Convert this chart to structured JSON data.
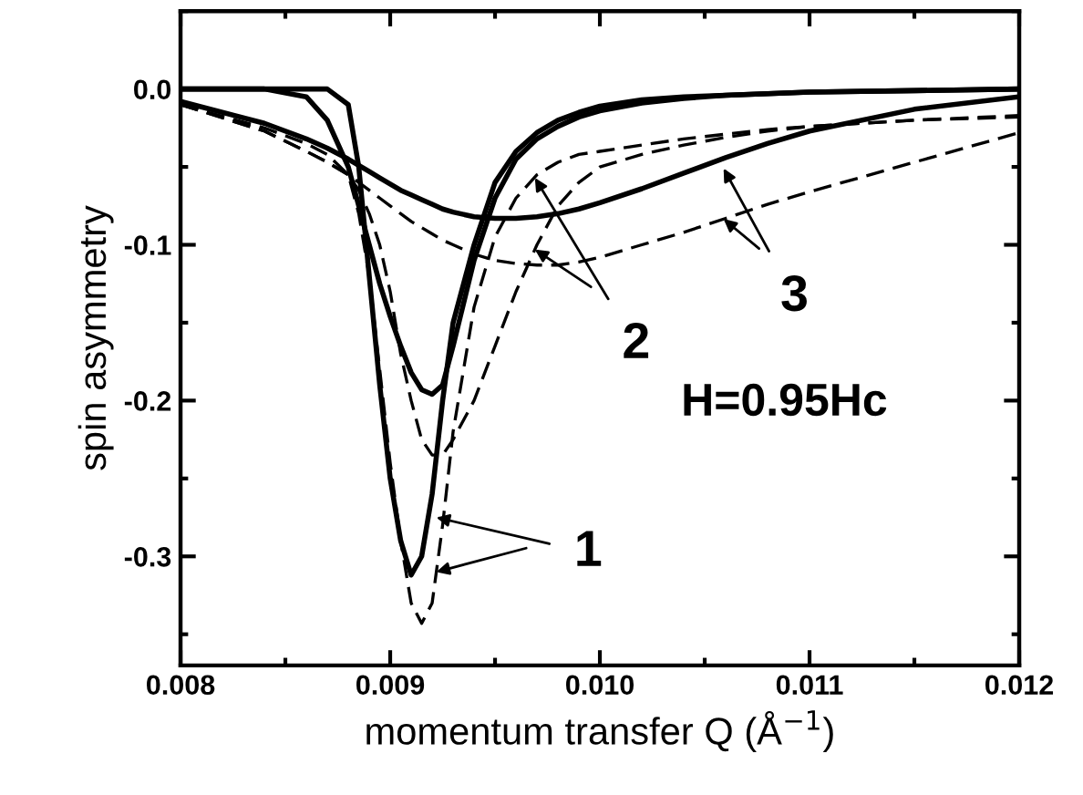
{
  "chart_data": {
    "type": "line",
    "xlabel": "momentum transfer Q (Å$^{−1}$)",
    "ylabel": "spin asymmetry",
    "x": [
      0.008,
      0.0084,
      0.0086,
      0.0087,
      0.0088,
      0.00885,
      0.0089,
      0.00895,
      0.009,
      0.00905,
      0.0091,
      0.00915,
      0.0092,
      0.00925,
      0.0093,
      0.0094,
      0.0095,
      0.0096,
      0.0097,
      0.0098,
      0.0099,
      0.01,
      0.0102,
      0.0104,
      0.0106,
      0.0108,
      0.011,
      0.0115,
      0.012
    ],
    "series": [
      {
        "color": "#000000",
        "line_style": "solid",
        "values": [
          0,
          0,
          0,
          0,
          -0.01,
          -0.05,
          -0.12,
          -0.19,
          -0.25,
          -0.29,
          -0.312,
          -0.3,
          -0.26,
          -0.2,
          -0.15,
          -0.1,
          -0.06,
          -0.04,
          -0.028,
          -0.02,
          -0.015,
          -0.011,
          -0.007,
          -0.005,
          -0.004,
          -0.003,
          -0.002,
          -0.001,
          0
        ]
      },
      {
        "color": "#000000",
        "line_style": "dashed",
        "values": [
          -0.01,
          -0.025,
          -0.035,
          -0.042,
          -0.055,
          -0.08,
          -0.12,
          -0.18,
          -0.24,
          -0.29,
          -0.33,
          -0.343,
          -0.33,
          -0.28,
          -0.22,
          -0.14,
          -0.095,
          -0.07,
          -0.055,
          -0.047,
          -0.042,
          -0.04,
          -0.036,
          -0.032,
          -0.029,
          -0.026,
          -0.024,
          -0.02,
          -0.017
        ]
      },
      {
        "color": "#000000",
        "line_style": "solid",
        "values": [
          0,
          0,
          -0.005,
          -0.02,
          -0.05,
          -0.075,
          -0.1,
          -0.125,
          -0.146,
          -0.165,
          -0.182,
          -0.193,
          -0.196,
          -0.19,
          -0.165,
          -0.11,
          -0.07,
          -0.045,
          -0.032,
          -0.024,
          -0.018,
          -0.014,
          -0.009,
          -0.006,
          -0.004,
          -0.003,
          -0.002,
          -0.001,
          0
        ]
      },
      {
        "color": "#000000",
        "line_style": "dashed",
        "values": [
          -0.01,
          -0.027,
          -0.04,
          -0.047,
          -0.055,
          -0.065,
          -0.08,
          -0.1,
          -0.13,
          -0.17,
          -0.2,
          -0.225,
          -0.235,
          -0.235,
          -0.225,
          -0.2,
          -0.165,
          -0.13,
          -0.1,
          -0.075,
          -0.06,
          -0.05,
          -0.042,
          -0.036,
          -0.031,
          -0.027,
          -0.024,
          -0.02,
          -0.018
        ]
      },
      {
        "color": "#000000",
        "line_style": "solid",
        "values": [
          -0.008,
          -0.022,
          -0.032,
          -0.038,
          -0.045,
          -0.049,
          -0.053,
          -0.057,
          -0.061,
          -0.065,
          -0.068,
          -0.071,
          -0.074,
          -0.077,
          -0.079,
          -0.082,
          -0.083,
          -0.083,
          -0.082,
          -0.08,
          -0.077,
          -0.073,
          -0.064,
          -0.054,
          -0.044,
          -0.035,
          -0.027,
          -0.013,
          -0.005
        ]
      },
      {
        "color": "#000000",
        "line_style": "dashed",
        "values": [
          -0.01,
          -0.027,
          -0.04,
          -0.047,
          -0.055,
          -0.06,
          -0.065,
          -0.07,
          -0.075,
          -0.08,
          -0.085,
          -0.089,
          -0.093,
          -0.097,
          -0.1,
          -0.106,
          -0.11,
          -0.112,
          -0.113,
          -0.113,
          -0.111,
          -0.108,
          -0.1,
          -0.092,
          -0.083,
          -0.074,
          -0.066,
          -0.047,
          -0.028
        ]
      }
    ],
    "xlim": [
      0.008,
      0.012
    ],
    "xticks": [
      {
        "value": 0.008,
        "label": "0.008"
      },
      {
        "value": 0.009,
        "label": "0.009"
      },
      {
        "value": 0.01,
        "label": "0.010"
      },
      {
        "value": 0.011,
        "label": "0.011"
      },
      {
        "value": 0.012,
        "label": "0.012"
      }
    ],
    "ylim": [
      -0.37,
      0.05
    ],
    "yticks": [
      {
        "value": -0.3,
        "label": "-0.3"
      },
      {
        "value": -0.2,
        "label": "-0.2"
      },
      {
        "value": -0.1,
        "label": "-0.1"
      },
      {
        "value": 0,
        "label": "0.0"
      }
    ],
    "annotations": [
      {
        "text": "1",
        "x": 0.00922,
        "y": -0.275
      },
      {
        "text": "2",
        "x": 0.00969,
        "y": -0.057
      },
      {
        "text": "3",
        "x": 0.01059,
        "y": -0.051
      },
      "H=0.95Hc"
    ],
    "grid": false,
    "legend": false,
    "marker": "none"
  }
}
